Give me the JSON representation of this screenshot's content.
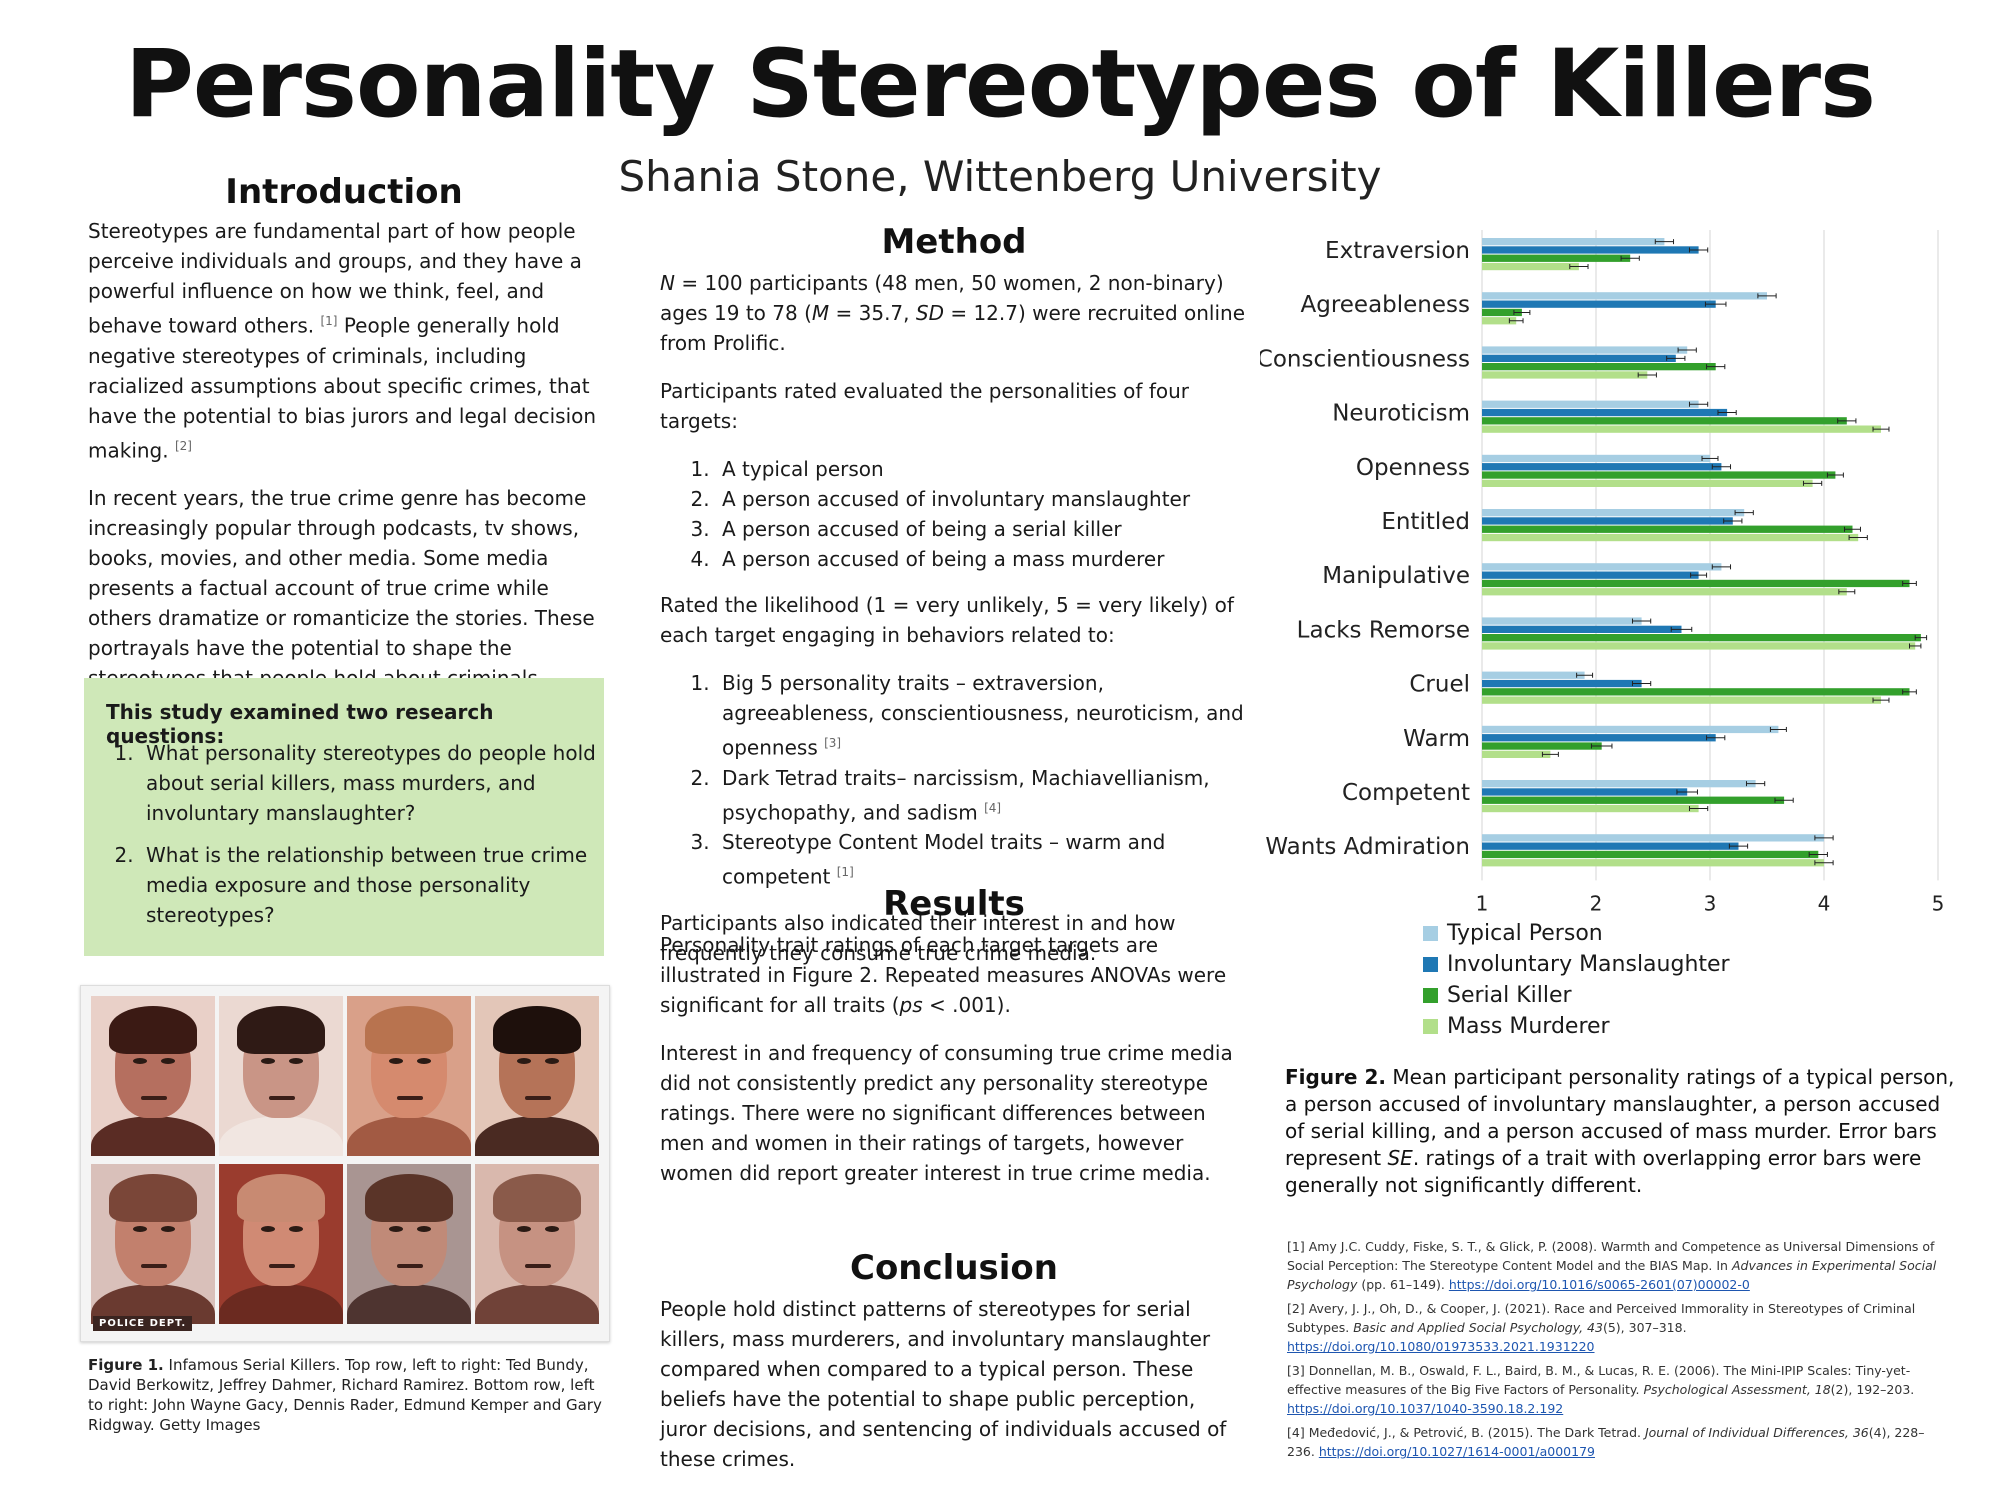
{
  "title": "Personality Stereotypes of Killers",
  "author": "Shania Stone, Wittenberg University",
  "introduction": {
    "heading": "Introduction",
    "p1": "Stereotypes are fundamental part of how people perceive individuals and groups, and they have a powerful influence on how we think, feel, and behave toward others.",
    "p1_ref": "[1]",
    "p1b": "People generally hold negative stereotypes of criminals, including racialized assumptions about specific crimes, that have the potential to bias jurors and legal decision making.",
    "p1b_ref": "[2]",
    "p2": "In recent years, the true crime genre has become increasingly popular through podcasts, tv shows, books, movies, and other media. Some media presents a factual account of true crime while others dramatize or romanticize the stories. These portrayals have the potential to shape the stereotypes that people hold about criminals.",
    "box_title": "This study examined two research questions:",
    "questions": [
      "What personality stereotypes do people hold about serial killers, mass murders, and involuntary manslaughter?",
      "What is the relationship between true crime media exposure and those personality stereotypes?"
    ],
    "figure1_label": "Figure 1.",
    "figure1_caption": "Infamous Serial Killers. Top row, left to right: Ted Bundy, David Berkowitz, Jeffrey Dahmer, Richard Ramirez. Bottom row, left to right: John Wayne Gacy, Dennis Rader, Edmund Kemper and Gary Ridgway. Getty Images",
    "photo_stamp": "POLICE DEPT."
  },
  "method": {
    "heading": "Method",
    "p1_n": "N",
    "p1_a": " = 100 participants (48 men, 50 women, 2 non-binary) ages 19 to 78 (",
    "p1_m": "M",
    "p1_b": " = 35.7, ",
    "p1_sd": "SD",
    "p1_c": " = 12.7) were recruited online from Prolific.",
    "p2": "Participants rated evaluated the personalities of four targets:",
    "targets": [
      "A typical person",
      "A person accused of involuntary manslaughter",
      "A person accused of being a serial killer",
      "A person accused of being a mass murderer"
    ],
    "p3": "Rated the likelihood (1 = very unlikely, 5 = very likely) of each target engaging in behaviors related to:",
    "traits": [
      {
        "text": "Big 5 personality traits – extraversion, agreeableness, conscientiousness, neuroticism, and openness",
        "ref": "[3]"
      },
      {
        "text": "Dark Tetrad traits– narcissism, Machiavellianism, psychopathy, and sadism",
        "ref": "[4]"
      },
      {
        "text": "Stereotype Content Model traits – warm and competent",
        "ref": "[1]"
      }
    ],
    "p4": "Participants also indicated their interest in and how frequently they consume true crime media."
  },
  "results": {
    "heading": "Results",
    "p1a": "Personality trait ratings of each target targets are illustrated in Figure 2. Repeated measures ANOVAs were significant for all traits (",
    "p1_ps": "ps",
    "p1b": " < .001).",
    "p2": "Interest in and frequency of consuming true crime media did not consistently predict any personality stereotype ratings. There were no significant differences between men and women in their ratings of targets, however women did report greater interest in true crime media."
  },
  "conclusion": {
    "heading": "Conclusion",
    "p1": "People hold distinct patterns of stereotypes for serial killers, mass murderers, and involuntary manslaughter compared when compared to a typical person. These beliefs have the potential to shape public perception, juror decisions, and sentencing of individuals accused of these crimes."
  },
  "chart_data": {
    "type": "bar",
    "orientation": "horizontal",
    "categories": [
      "Extraversion",
      "Agreeableness",
      "Conscientiousness",
      "Neuroticism",
      "Openness",
      "Entitled",
      "Manipulative",
      "Lacks Remorse",
      "Cruel",
      "Warm",
      "Competent",
      "Wants Admiration"
    ],
    "xlim": [
      1,
      5
    ],
    "xticks": [
      "1",
      "2",
      "3",
      "4",
      "5"
    ],
    "grid": true,
    "legend_position": "bottom",
    "series": [
      {
        "name": "Typical Person",
        "color": "#a6cee3",
        "values": [
          2.6,
          3.5,
          2.8,
          2.9,
          3.0,
          3.3,
          3.1,
          2.4,
          1.9,
          3.6,
          3.4,
          4.0
        ],
        "se": [
          0.08,
          0.08,
          0.08,
          0.08,
          0.07,
          0.08,
          0.08,
          0.08,
          0.07,
          0.07,
          0.08,
          0.08
        ]
      },
      {
        "name": "Involuntary Manslaughter",
        "color": "#1f78b4",
        "values": [
          2.9,
          3.05,
          2.7,
          3.15,
          3.1,
          3.2,
          2.9,
          2.75,
          2.4,
          3.05,
          2.8,
          3.25
        ],
        "se": [
          0.08,
          0.09,
          0.08,
          0.08,
          0.08,
          0.08,
          0.07,
          0.09,
          0.08,
          0.08,
          0.09,
          0.08
        ]
      },
      {
        "name": "Serial Killer",
        "color": "#33a02c",
        "values": [
          2.3,
          1.35,
          3.05,
          4.2,
          4.1,
          4.25,
          4.75,
          4.85,
          4.75,
          2.05,
          3.65,
          3.95
        ],
        "se": [
          0.08,
          0.07,
          0.08,
          0.08,
          0.07,
          0.07,
          0.06,
          0.05,
          0.06,
          0.09,
          0.08,
          0.08
        ]
      },
      {
        "name": "Mass Murderer",
        "color": "#b2df8a",
        "values": [
          1.85,
          1.3,
          2.45,
          4.5,
          3.9,
          4.3,
          4.2,
          4.8,
          4.5,
          1.6,
          2.9,
          4.0
        ],
        "se": [
          0.08,
          0.06,
          0.08,
          0.07,
          0.08,
          0.08,
          0.07,
          0.05,
          0.07,
          0.07,
          0.08,
          0.08
        ]
      }
    ]
  },
  "figure2": {
    "label": "Figure 2.",
    "caption_a": "Mean participant personality ratings of a typical person, a person accused of involuntary manslaughter, a person accused of serial killing, and a person accused of mass murder. Error bars represent ",
    "caption_se": "SE",
    "caption_b": ". ratings of a trait with overlapping error bars were generally not significantly different."
  },
  "references": [
    {
      "n": "[1]",
      "a": "Amy J.C. Cuddy, Fiske, S. T., & Glick, P. (2008). Warmth and Competence as Universal Dimensions of Social Perception: The Stereotype Content Model and the BIAS Map. In ",
      "i": "Advances in Experimental Social Psychology",
      "b": " (pp. 61–149). ",
      "url": "https://doi.org/10.1016/s0065-2601(07)00002-0"
    },
    {
      "n": "[2]",
      "a": "Avery, J. J., Oh, D., & Cooper, J. (2021). Race and Perceived Immorality in Stereotypes of Criminal Subtypes. ",
      "i": "Basic and Applied Social Psychology, 43",
      "b": "(5), 307–318.",
      "url": "https://doi.org/10.1080/01973533.2021.1931220"
    },
    {
      "n": "[3]",
      "a": "Donnellan, M. B., Oswald, F. L., Baird, B. M., & Lucas, R. E. (2006). The Mini-IPIP Scales: Tiny-yet-effective measures of the Big Five Factors of Personality. ",
      "i": "Psychological Assessment, 18",
      "b": "(2), 192–203.",
      "url": "https://doi.org/10.1037/1040-3590.18.2.192"
    },
    {
      "n": "[4]",
      "a": "Međedović, J., & Petrović, B. (2015). The Dark Tetrad. ",
      "i": "Journal of Individual Differences, 36",
      "b": "(4), 228–236.",
      "url": "https://doi.org/10.1027/1614-0001/a000179"
    }
  ]
}
